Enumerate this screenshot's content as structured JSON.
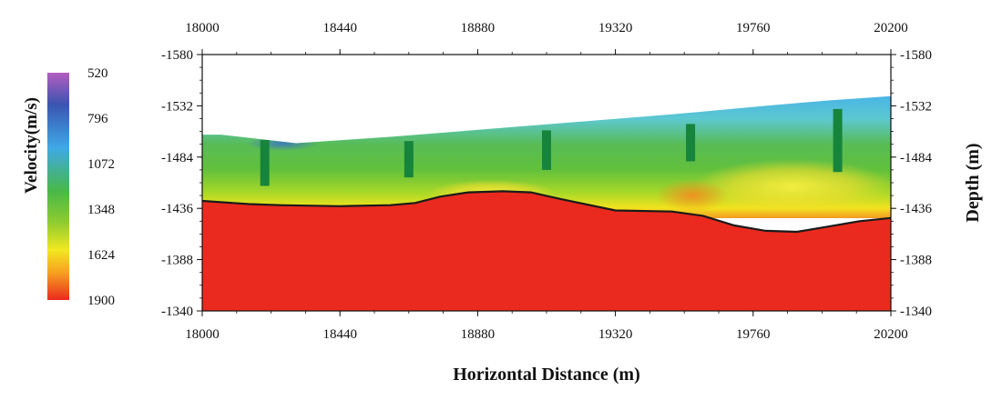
{
  "chart_data": {
    "type": "heatmap",
    "x_axis": {
      "label": "Horizontal Distance (m)",
      "ticks": [
        "18000",
        "18440",
        "18880",
        "19320",
        "19760",
        "20200"
      ],
      "range": [
        18000,
        20200
      ]
    },
    "y_axis": {
      "label": "Depth (m)",
      "ticks": [
        "-1580",
        "-1532",
        "-1484",
        "-1436",
        "-1388",
        "-1340"
      ],
      "range": [
        -1580,
        -1340
      ]
    },
    "colorbar": {
      "label": "Velocity(m/s)",
      "ticks": [
        "520",
        "796",
        "1072",
        "1348",
        "1624",
        "1900"
      ],
      "range": [
        520,
        1900
      ],
      "colors": [
        "#b45cc0",
        "#3a55b0",
        "#3fa8e6",
        "#48b848",
        "#90cc30",
        "#f2e820",
        "#f7a020",
        "#ea2a1e"
      ]
    },
    "surface": {
      "x": [
        18000,
        18060,
        18300,
        18600,
        18900,
        19200,
        19500,
        19800,
        20000,
        20200
      ],
      "depth": [
        -1505,
        -1505,
        -1497,
        -1503,
        -1510,
        -1517,
        -1524,
        -1532,
        -1537,
        -1541
      ]
    },
    "refractor_interface": {
      "x": [
        18000,
        18150,
        18250,
        18440,
        18600,
        18680,
        18760,
        18850,
        18960,
        19050,
        19140,
        19320,
        19500,
        19600,
        19700,
        19800,
        19900,
        20000,
        20100,
        20200
      ],
      "depth": [
        -1443,
        -1440,
        -1439,
        -1438,
        -1439,
        -1441,
        -1447,
        -1451,
        -1452,
        -1451,
        -1445,
        -1434,
        -1433,
        -1429,
        -1420,
        -1415,
        -1414,
        -1419,
        -1424,
        -1427
      ]
    },
    "boreholes": [
      {
        "x": 18200,
        "top": -1500,
        "bottom": -1457
      },
      {
        "x": 18660,
        "top": -1499,
        "bottom": -1465
      },
      {
        "x": 19100,
        "top": -1509,
        "bottom": -1472
      },
      {
        "x": 19560,
        "top": -1515,
        "bottom": -1480
      },
      {
        "x": 20030,
        "top": -1529,
        "bottom": -1470
      }
    ]
  }
}
